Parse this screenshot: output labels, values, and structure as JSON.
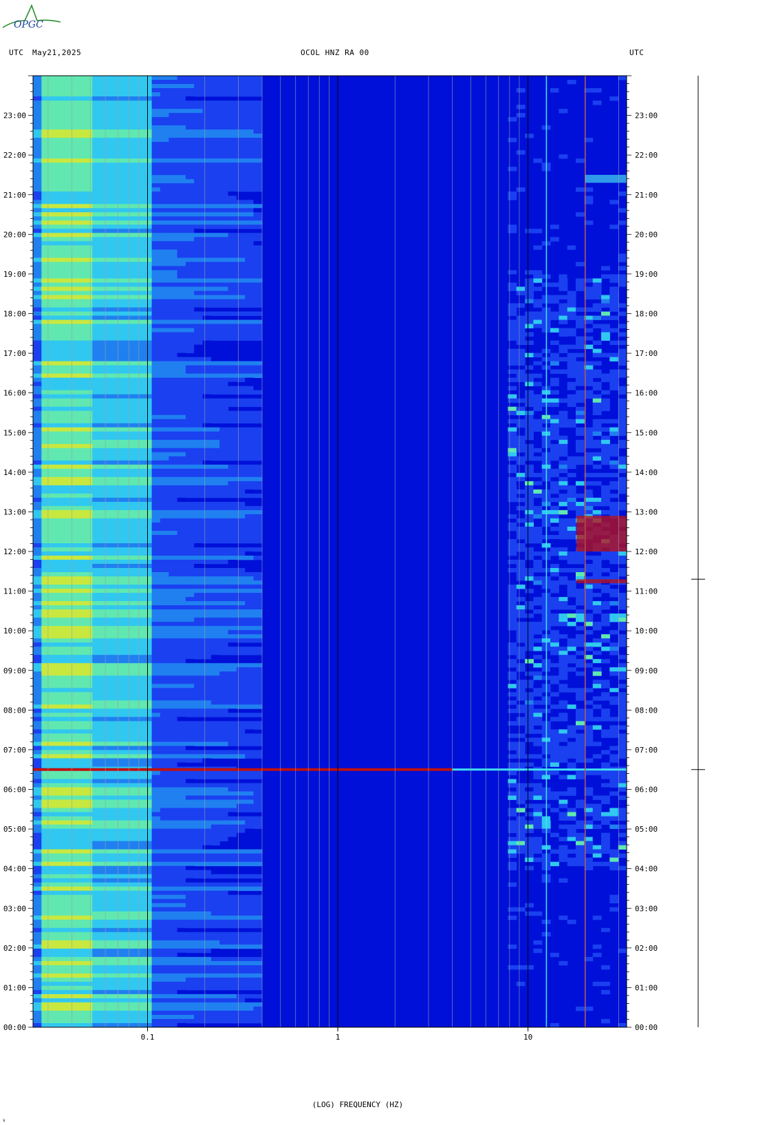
{
  "header": {
    "left_tz": "UTC",
    "date": "May21,2025",
    "station": "OCOL HNZ RA 00",
    "right_tz": "UTC"
  },
  "logo": {
    "text": "OPGC",
    "accent": "#2a8f2a",
    "ink": "#1a3f9a"
  },
  "footer": {
    "mark": "s"
  },
  "chart_data": {
    "type": "heatmap",
    "xlabel": "(LOG) FREQUENCY (HZ)",
    "x_scale": "log",
    "xlim": [
      0.025,
      33
    ],
    "x_tick_labels": [
      {
        "value": 0.1,
        "label": "0.1"
      },
      {
        "value": 1,
        "label": "1"
      },
      {
        "value": 10,
        "label": "10"
      }
    ],
    "x_minor_ticks": [
      0.03,
      0.04,
      0.05,
      0.06,
      0.07,
      0.08,
      0.09,
      0.2,
      0.3,
      0.4,
      0.5,
      0.6,
      0.7,
      0.8,
      0.9,
      2,
      3,
      4,
      5,
      6,
      7,
      8,
      9,
      20,
      30
    ],
    "ylabel": "UTC",
    "ylim_hours": [
      0,
      24
    ],
    "y_tick_labels": [
      "00:00",
      "01:00",
      "02:00",
      "03:00",
      "04:00",
      "05:00",
      "06:00",
      "07:00",
      "08:00",
      "09:00",
      "10:00",
      "11:00",
      "12:00",
      "13:00",
      "14:00",
      "15:00",
      "16:00",
      "17:00",
      "18:00",
      "19:00",
      "20:00",
      "21:00",
      "22:00",
      "23:00"
    ],
    "y_tick_hours": [
      0,
      1,
      2,
      3,
      4,
      5,
      6,
      7,
      8,
      9,
      10,
      11,
      12,
      13,
      14,
      15,
      16,
      17,
      18,
      19,
      20,
      21,
      22,
      23
    ],
    "colormap": [
      "#0010d8",
      "#1a40f0",
      "#2080f0",
      "#30c8f0",
      "#60e8b0",
      "#c8e840",
      "#f0a020",
      "#c01010"
    ],
    "features": [
      {
        "kind": "broadband_event",
        "hour": 6.5,
        "fmax": 4,
        "color": "#c01010"
      },
      {
        "kind": "narrowband_line",
        "freq": 12.5,
        "color": "#40e0f0"
      },
      {
        "kind": "narrowband_line",
        "freq": 20,
        "color": "#c03030"
      },
      {
        "kind": "noise_burst",
        "hour_start": 12.0,
        "hour_end": 12.9,
        "fmin": 18,
        "fmax": 33,
        "color": "#c01010"
      },
      {
        "kind": "noise_burst",
        "hour_start": 11.2,
        "hour_end": 11.3,
        "fmin": 18,
        "fmax": 33,
        "color": "#c01010"
      },
      {
        "kind": "noise_burst",
        "hour_start": 21.3,
        "hour_end": 21.5,
        "fmin": 20,
        "fmax": 33,
        "color": "#40c8f0"
      }
    ],
    "side_trace": {
      "events_hours": [
        6.5,
        11.3
      ]
    }
  }
}
